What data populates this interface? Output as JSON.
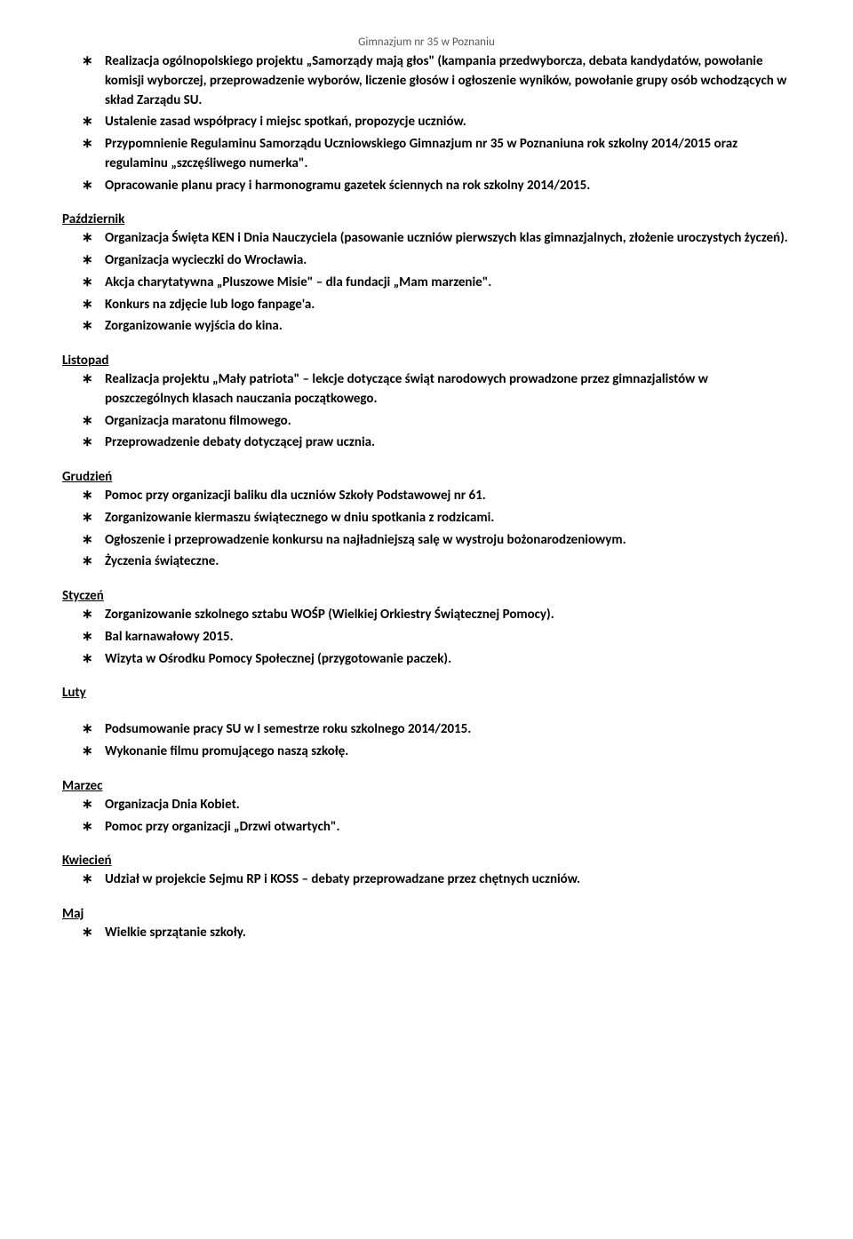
{
  "header": "Gimnazjum nr 35 w Poznaniu",
  "sections": [
    {
      "heading": null,
      "items": [
        "Realizacja ogólnopolskiego  projektu „Samorządy mają głos\" (kampania przedwyborcza, debata kandydatów, powołanie komisji wyborczej, przeprowadzenie wyborów, liczenie głosów i ogłoszenie wyników, powołanie grupy osób wchodzących w skład Zarządu SU.",
        "Ustalenie zasad współpracy i miejsc spotkań, propozycje uczniów.",
        "Przypomnienie Regulaminu Samorządu Uczniowskiego Gimnazjum nr 35 w Poznaniuna rok szkolny 2014/2015 oraz regulaminu „szczęśliwego numerka\".",
        "Opracowanie planu pracy i harmonogramu gazetek ściennych na rok szkolny 2014/2015."
      ]
    },
    {
      "heading": "Październik",
      "items": [
        "Organizacja Święta KEN i Dnia Nauczyciela (pasowanie uczniów pierwszych klas gimnazjalnych, złożenie uroczystych życzeń).",
        "Organizacja wycieczki do Wrocławia.",
        "Akcja charytatywna „Pluszowe Misie\" – dla fundacji „Mam marzenie\".",
        "Konkurs na zdjęcie lub logo fanpage'a.",
        "Zorganizowanie wyjścia do kina."
      ]
    },
    {
      "heading": "Listopad",
      "items": [
        "Realizacja projektu „Mały patriota\" – lekcje dotyczące świąt narodowych prowadzone przez gimnazjalistów w poszczególnych klasach nauczania początkowego.",
        "Organizacja maratonu filmowego.",
        "Przeprowadzenie debaty dotyczącej praw ucznia."
      ]
    },
    {
      "heading": "Grudzień",
      "items": [
        "Pomoc przy organizacji baliku dla uczniów Szkoły Podstawowej nr 61.",
        "Zorganizowanie kiermaszu świątecznego w dniu spotkania z rodzicami.",
        "Ogłoszenie i przeprowadzenie konkursu na najładniejszą salę w wystroju bożonarodzeniowym.",
        "Życzenia świąteczne."
      ]
    },
    {
      "heading": "Styczeń",
      "items": [
        "Zorganizowanie szkolnego sztabu WOŚP (Wielkiej Orkiestry Świątecznej Pomocy).",
        "Bal karnawałowy 2015.",
        "Wizyta w Ośrodku Pomocy Społecznej (przygotowanie paczek)."
      ]
    },
    {
      "heading": "Luty",
      "items": [
        "Podsumowanie pracy SU w I semestrze roku szkolnego 2014/2015.",
        "Wykonanie filmu promującego naszą szkołę."
      ]
    },
    {
      "heading": "Marzec",
      "items": [
        "Organizacja Dnia Kobiet.",
        "Pomoc przy organizacji „Drzwi otwartych\"."
      ]
    },
    {
      "heading": "Kwiecień",
      "items": [
        "Udział w projekcie Sejmu RP i KOSS – debaty przeprowadzane przez chętnych uczniów."
      ]
    },
    {
      "heading": "Maj",
      "items": [
        "Wielkie sprzątanie szkoły."
      ]
    }
  ]
}
